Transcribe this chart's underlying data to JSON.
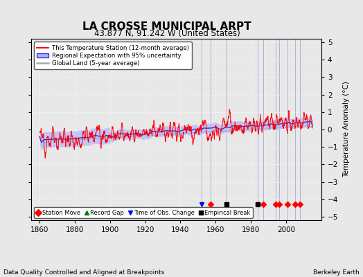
{
  "title": "LA CROSSE MUNICIPAL ARPT",
  "subtitle": "43.877 N, 91.242 W (United States)",
  "ylabel": "Temperature Anomaly (°C)",
  "xlabel_note": "Data Quality Controlled and Aligned at Breakpoints",
  "credit": "Berkeley Earth",
  "xlim": [
    1855,
    2020
  ],
  "ylim": [
    -5.2,
    5.2
  ],
  "yticks": [
    -5,
    -4,
    -3,
    -2,
    -1,
    0,
    1,
    2,
    3,
    4,
    5
  ],
  "xticks": [
    1860,
    1880,
    1900,
    1920,
    1940,
    1960,
    1980,
    2000
  ],
  "bg_color": "#e8e8e8",
  "plot_bg": "#e8e8e8",
  "red_color": "#ff0000",
  "blue_color": "#3333cc",
  "band_color": "#b0b0ff",
  "gray_color": "#aaaaaa",
  "station_move_years": [
    1957,
    1987,
    1994,
    1996,
    2001,
    2005,
    2008
  ],
  "empirical_break_years": [
    1966,
    1984
  ],
  "time_obs_years": [
    1952
  ],
  "record_gap_years": [],
  "marker_y": -4.3,
  "vline_color": "#8888cc",
  "vline_alpha": 0.6
}
